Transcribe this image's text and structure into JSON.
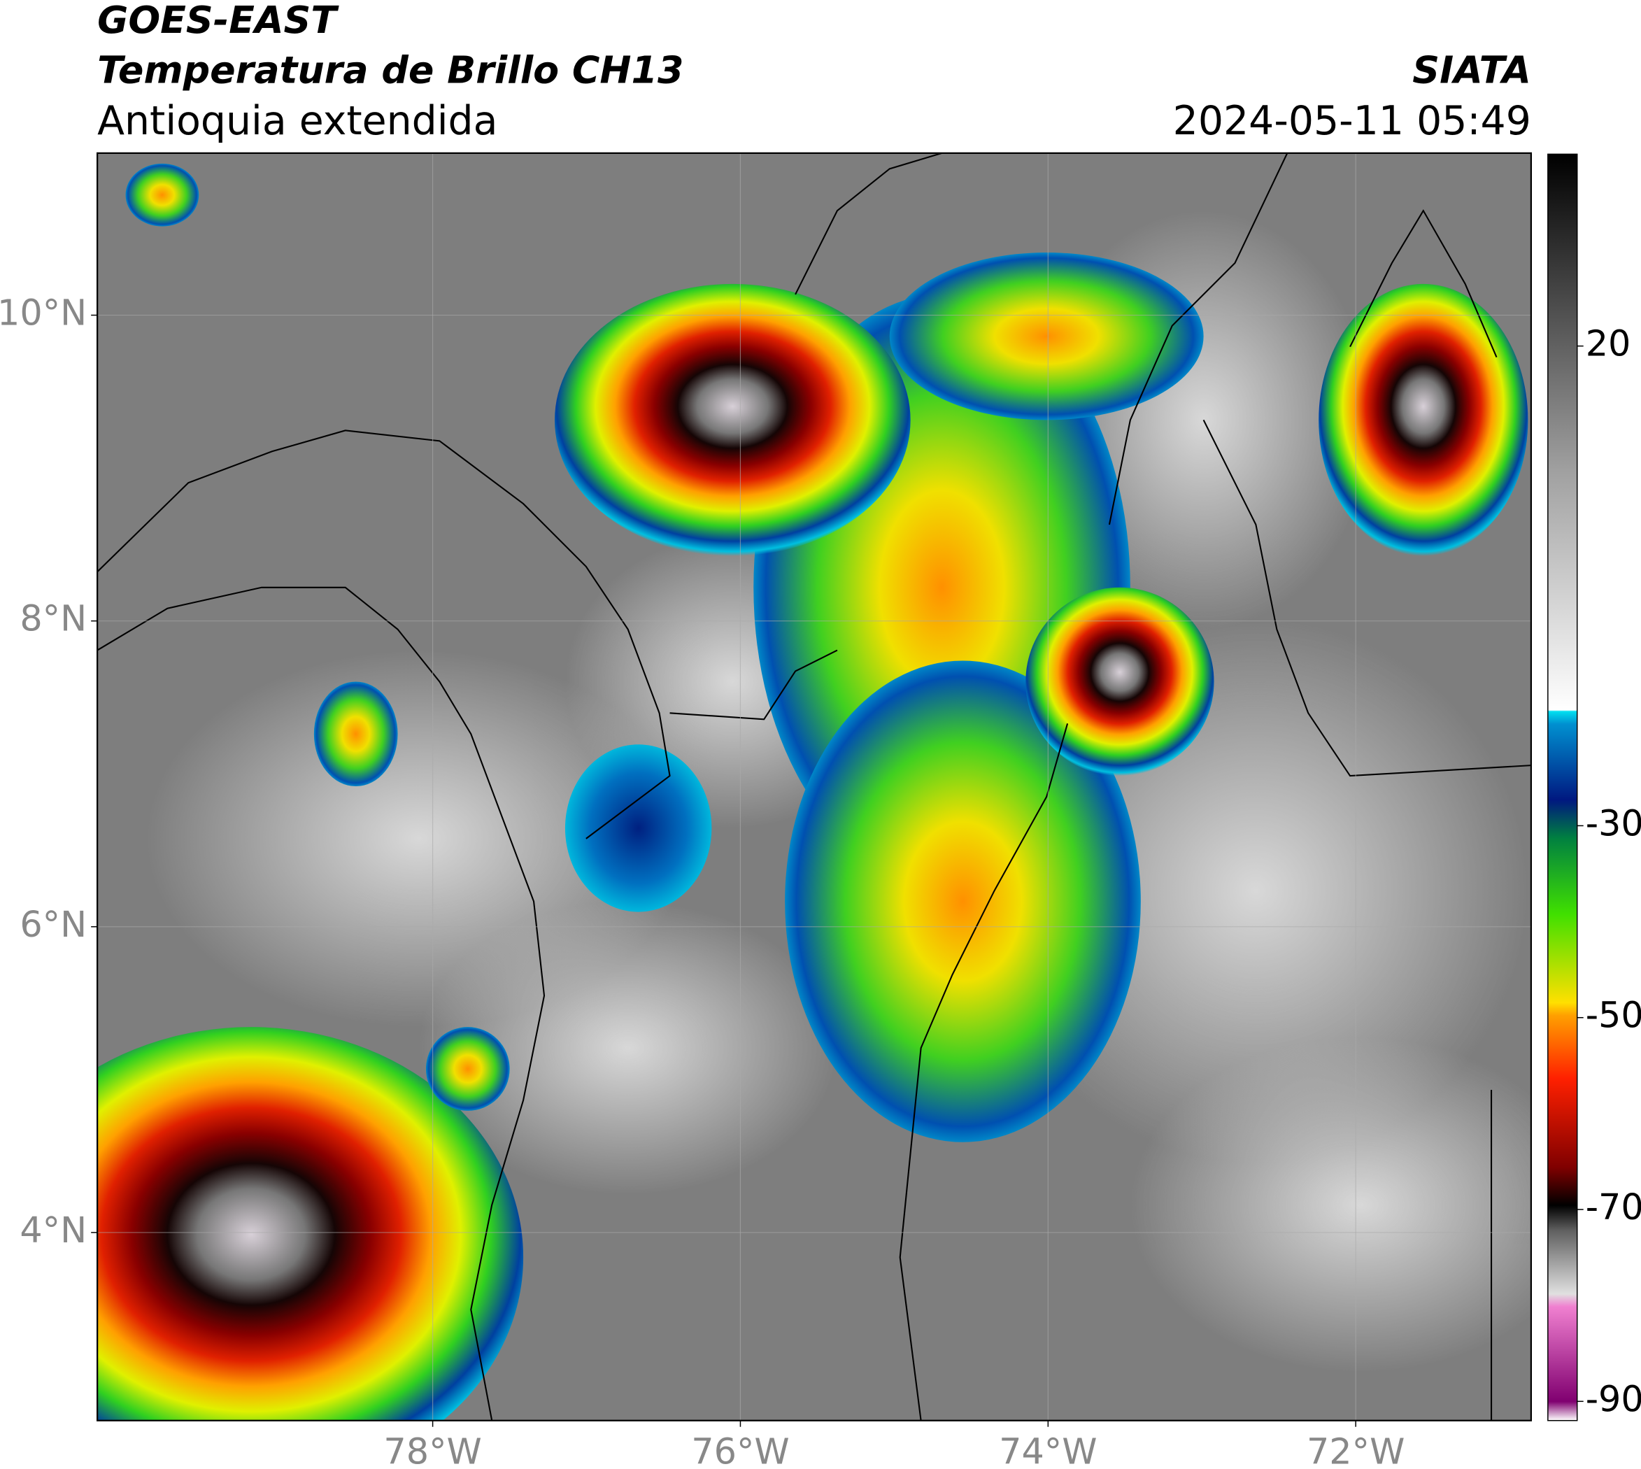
{
  "header": {
    "satellite": "GOES-EAST",
    "product": "Temperatura de Brillo CH13",
    "region": "Antioquia extendida",
    "agency": "SIATA",
    "datetime": "2024-05-11 05:49"
  },
  "map": {
    "lon_range": [
      -80.18,
      -70.86
    ],
    "lat_range": [
      2.77,
      11.06
    ],
    "lon_ticks": [
      {
        "value": -78,
        "label": "78°W"
      },
      {
        "value": -76,
        "label": "76°W"
      },
      {
        "value": -74,
        "label": "74°W"
      },
      {
        "value": -72,
        "label": "72°W"
      }
    ],
    "lat_ticks": [
      {
        "value": 4,
        "label": "4°N"
      },
      {
        "value": 6,
        "label": "6°N"
      },
      {
        "value": 8,
        "label": "8°N"
      },
      {
        "value": 10,
        "label": "10°N"
      }
    ]
  },
  "colorbar": {
    "range": [
      -92,
      40
    ],
    "ticks": [
      -90,
      -70,
      -50,
      -30,
      20
    ]
  }
}
